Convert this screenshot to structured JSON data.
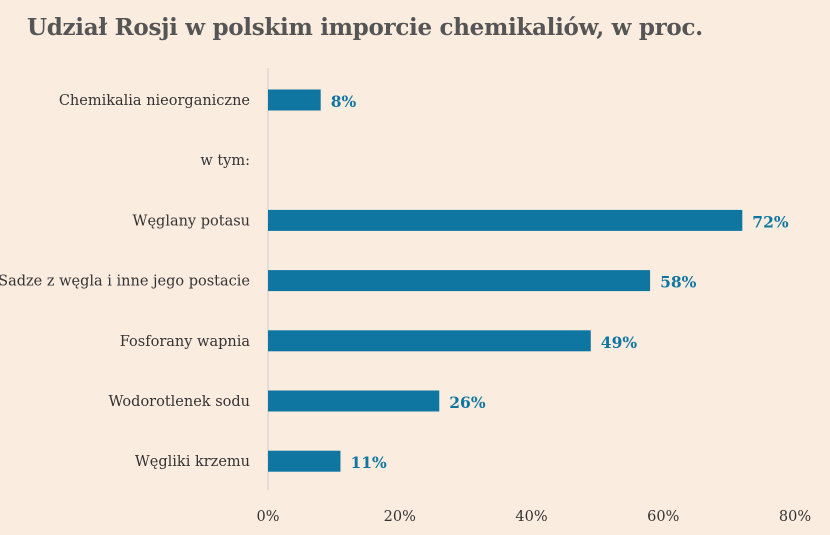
{
  "chart_data": {
    "type": "bar",
    "orientation": "horizontal",
    "title": "Udział Rosji w polskim imporcie chemikaliów, w proc.",
    "categories": [
      "Chemikalia nieorganiczne",
      "w tym:",
      "Węglany potasu",
      "Sadze z węgla i inne jego postacie",
      "Fosforany wapnia",
      "Wodorotlenek sodu",
      "Węgliki krzemu"
    ],
    "values": [
      8,
      null,
      72,
      58,
      49,
      26,
      11
    ],
    "data_labels": [
      "8%",
      "",
      "72%",
      "58%",
      "49%",
      "26%",
      "11%"
    ],
    "xlim": [
      0,
      80
    ],
    "x_ticks": [
      0,
      20,
      40,
      60,
      80
    ],
    "x_tick_labels": [
      "0%",
      "20%",
      "40%",
      "60%",
      "80%"
    ],
    "grid": false,
    "legend": "none",
    "colors": {
      "bar": "#0e76a0",
      "label": "#0e76a0",
      "axis": "#cccccc",
      "background": "#fbece0",
      "title": "#555555",
      "text": "#333333"
    }
  }
}
